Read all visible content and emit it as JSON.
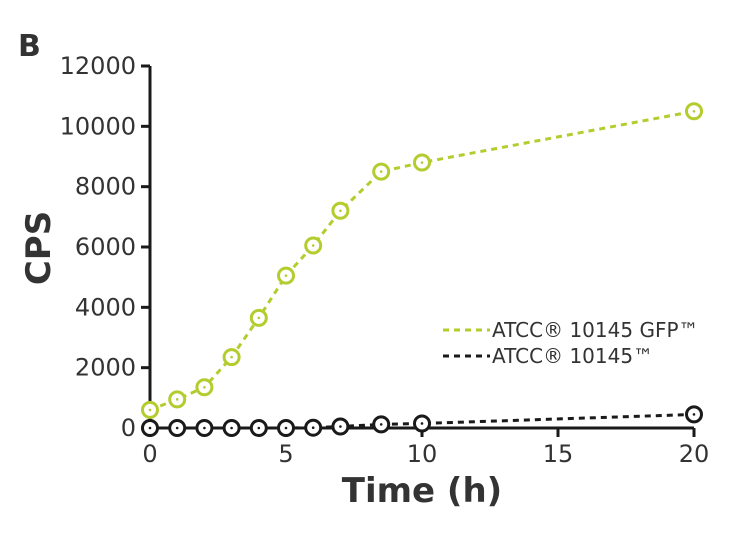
{
  "chart_data": {
    "type": "line",
    "panel_label": "B",
    "xlabel": "Time (h)",
    "ylabel": "CPS",
    "xlim": [
      0,
      20
    ],
    "ylim": [
      0,
      12000
    ],
    "xticks": [
      "0",
      "5",
      "10",
      "15",
      "20"
    ],
    "xtick_values": [
      0,
      5,
      10,
      15,
      20
    ],
    "yticks": [
      "0",
      "2000",
      "4000",
      "6000",
      "8000",
      "10000",
      "12000"
    ],
    "ytick_values": [
      0,
      2000,
      4000,
      6000,
      8000,
      10000,
      12000
    ],
    "grid": false,
    "legend_position": "right",
    "series": [
      {
        "name": "ATCC® 10145 GFP™",
        "color": "#b5cc2e",
        "x": [
          0,
          1,
          2,
          3,
          4,
          5,
          6,
          7,
          8.5,
          10,
          20
        ],
        "values": [
          600,
          950,
          1350,
          2350,
          3650,
          5050,
          6050,
          7200,
          8500,
          8800,
          10500
        ]
      },
      {
        "name": "ATCC® 10145™",
        "color": "#1a1a1a",
        "x": [
          0,
          1,
          2,
          3,
          4,
          5,
          6,
          7,
          8.5,
          10,
          20
        ],
        "values": [
          0,
          0,
          0,
          0,
          0,
          0,
          10,
          50,
          120,
          150,
          450
        ]
      }
    ]
  }
}
